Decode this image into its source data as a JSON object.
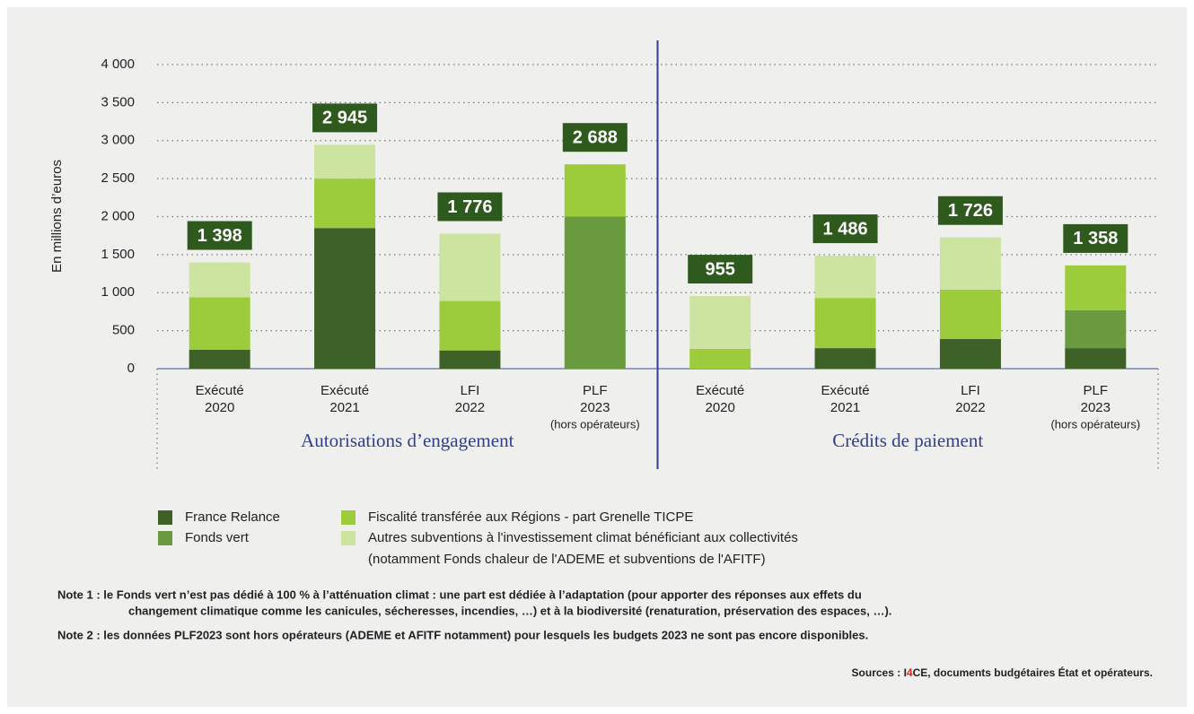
{
  "chart_data": {
    "type": "stacked_bar",
    "y_label": "En millions d’euros",
    "categories": [
      [
        "Exécuté",
        "2020"
      ],
      [
        "Exécuté",
        "2021"
      ],
      [
        "LFI",
        "2022"
      ],
      [
        "PLF",
        "2023",
        "(hors opérateurs)"
      ],
      [
        "Exécuté",
        "2020"
      ],
      [
        "Exécuté",
        "2021"
      ],
      [
        "LFI",
        "2022"
      ],
      [
        "PLF",
        "2023",
        "(hors opérateurs)"
      ]
    ],
    "groups": [
      {
        "name": "Autorisations d’engagement",
        "size": 4
      },
      {
        "name": "Crédits de paiement",
        "size": 4
      }
    ],
    "series": [
      {
        "name": "France Relance",
        "color": "#3d6126",
        "values": [
          250,
          1850,
          240,
          0,
          0,
          270,
          390,
          270
        ]
      },
      {
        "name": "Fonds vert",
        "color": "#6a9a3e",
        "values": [
          0,
          0,
          0,
          2000,
          0,
          0,
          0,
          500
        ]
      },
      {
        "name": "Fiscalité transférée aux Régions - part Grenelle TICPE",
        "color": "#9ccc3c",
        "values": [
          690,
          650,
          650,
          688,
          260,
          660,
          650,
          588
        ]
      },
      {
        "name": "Autres subventions à l'investissement climat bénéficiant aux collectivités",
        "legend_note": "(notamment Fonds chaleur de l'ADEME et subventions de l'AFITF)",
        "color": "#cde3a0",
        "values": [
          458,
          445,
          886,
          0,
          695,
          556,
          686,
          0
        ]
      }
    ],
    "totals": {
      "values": [
        1398,
        2945,
        1776,
        2688,
        955,
        1486,
        1726,
        1358
      ],
      "value_labels": [
        "1 398",
        "2 945",
        "1 776",
        "2 688",
        "955",
        "1 486",
        "1 726",
        "1 358"
      ]
    },
    "ylim": [
      0,
      4000
    ],
    "yticks": [
      0,
      500,
      {
        "value": 1000,
        "label": "1 000"
      },
      {
        "value": 1500,
        "label": "1 500"
      },
      {
        "value": 2000,
        "label": "2 000"
      },
      {
        "value": 2500,
        "label": "2 500"
      },
      {
        "value": 3000,
        "label": "3 000"
      },
      {
        "value": 3500,
        "label": "3 500"
      },
      {
        "value": 4000,
        "label": "4 000"
      }
    ],
    "grid": true,
    "notes": [
      [
        "Note 1 : le Fonds vert n’est pas dédié à 100 % à l’atténuation climat : une part est dédiée à l’adaptation (pour apporter des réponses aux effets du",
        "changement climatique comme les canicules, sécheresses, incendies, …) et à la biodiversité (renaturation, préservation des espaces, …)."
      ],
      [
        "Note 2 : les données PLF2023 sont hors opérateurs (ADEME et AFITF notamment) pour lesquels les budgets 2023 ne sont pas encore disponibles."
      ]
    ],
    "source": [
      "Sources : I",
      "4",
      "CE, documents budgétaires État et opérateurs."
    ]
  }
}
